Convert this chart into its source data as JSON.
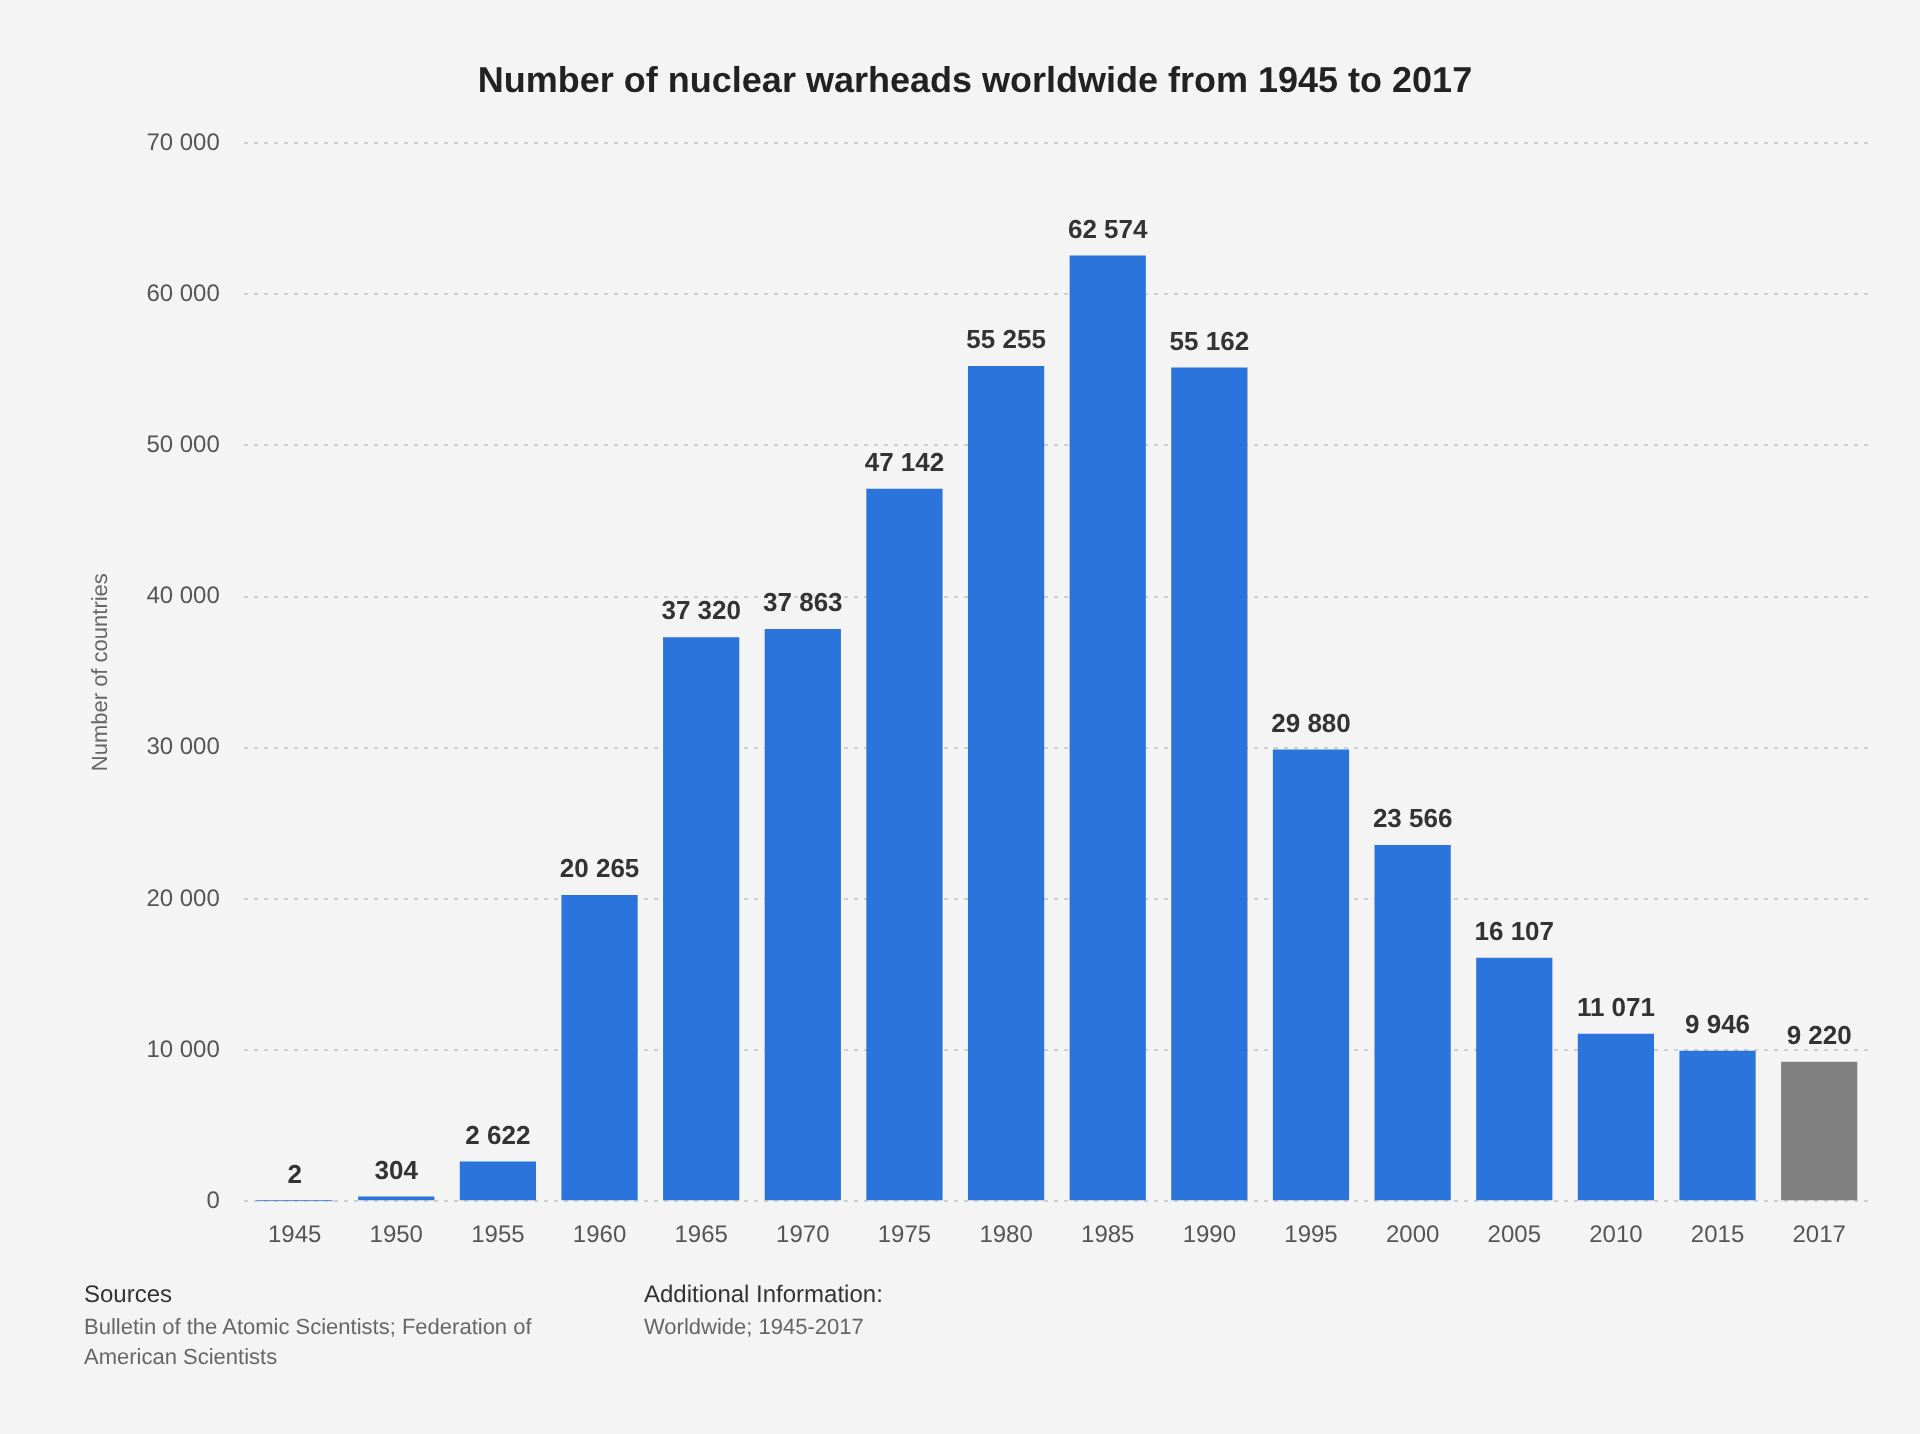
{
  "chart_data": {
    "type": "bar",
    "title": "Number of nuclear warheads worldwide from 1945 to 2017",
    "ylabel": "Number of countries",
    "categories": [
      "1945",
      "1950",
      "1955",
      "1960",
      "1965",
      "1970",
      "1975",
      "1980",
      "1985",
      "1990",
      "1995",
      "2000",
      "2005",
      "2010",
      "2015",
      "2017"
    ],
    "values": [
      2,
      304,
      2622,
      20265,
      37320,
      37863,
      47142,
      55255,
      62574,
      55162,
      29880,
      23566,
      16107,
      11071,
      9946,
      9220
    ],
    "value_labels": [
      "2",
      "304",
      "2 622",
      "20 265",
      "37 320",
      "37 863",
      "47 142",
      "55 255",
      "62 574",
      "55 162",
      "29 880",
      "23 566",
      "16 107",
      "11 071",
      "9 946",
      "9 220"
    ],
    "colors": [
      "#2a74dc",
      "#2a74dc",
      "#2a74dc",
      "#2a74dc",
      "#2a74dc",
      "#2a74dc",
      "#2a74dc",
      "#2a74dc",
      "#2a74dc",
      "#2a74dc",
      "#2a74dc",
      "#2a74dc",
      "#2a74dc",
      "#2a74dc",
      "#2a74dc",
      "#808080"
    ],
    "ylim": [
      0,
      70000
    ],
    "yticks": [
      {
        "value": 0,
        "label": "0"
      },
      {
        "value": 10000,
        "label": "10 000"
      },
      {
        "value": 20000,
        "label": "20 000"
      },
      {
        "value": 30000,
        "label": "30 000"
      },
      {
        "value": 40000,
        "label": "40 000"
      },
      {
        "value": 50000,
        "label": "50 000"
      },
      {
        "value": 60000,
        "label": "60 000"
      },
      {
        "value": 70000,
        "label": "70 000"
      }
    ],
    "grid": "y",
    "legend": false,
    "annotations": [
      "Sources",
      "Bulletin of the Atomic Scientists; Federation of American Scientists",
      "Additional Information:",
      "Worldwide; 1945-2017"
    ]
  }
}
